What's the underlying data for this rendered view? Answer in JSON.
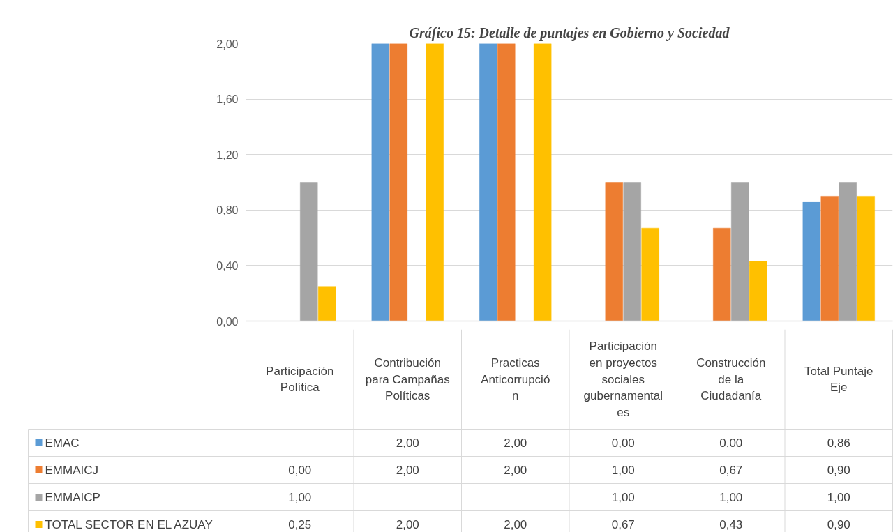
{
  "chart_data": {
    "type": "bar",
    "title": "Gráfico 15: Detalle de puntajes en Gobierno y Sociedad",
    "categories": [
      "Participación Política",
      "Contribución para Campañas Políticas",
      "Practicas Anticorrupción",
      "Participación en proyectos sociales gubernamentales",
      "Construcción de la Ciudadanía",
      "Total Puntaje Eje"
    ],
    "series": [
      {
        "name": "EMAC",
        "color": "#5b9bd5",
        "values": [
          null,
          2.0,
          2.0,
          0.0,
          0.0,
          0.86
        ],
        "value_labels": [
          null,
          "2,00",
          "2,00",
          "0,00",
          "0,00",
          "0,86"
        ]
      },
      {
        "name": "EMMAICJ",
        "color": "#ed7d31",
        "values": [
          0.0,
          2.0,
          2.0,
          1.0,
          0.67,
          0.9
        ],
        "value_labels": [
          "0,00",
          "2,00",
          "2,00",
          "1,00",
          "0,67",
          "0,90"
        ]
      },
      {
        "name": "EMMAICP",
        "color": "#a5a5a5",
        "values": [
          1.0,
          null,
          null,
          1.0,
          1.0,
          1.0
        ],
        "value_labels": [
          "1,00",
          null,
          null,
          "1,00",
          "1,00",
          "1,00"
        ]
      },
      {
        "name": "TOTAL SECTOR EN EL AZUAY",
        "color": "#ffc000",
        "values": [
          0.25,
          2.0,
          2.0,
          0.67,
          0.43,
          0.9
        ],
        "value_labels": [
          "0,25",
          "2,00",
          "2,00",
          "0,67",
          "0,43",
          "0,90"
        ]
      }
    ],
    "ylim": [
      0,
      2
    ],
    "yticks": [
      {
        "value": 0,
        "label": "0,00"
      },
      {
        "value": 0.4,
        "label": "0,40"
      },
      {
        "value": 0.8,
        "label": "0,80"
      },
      {
        "value": 1.2,
        "label": "1,20"
      },
      {
        "value": 1.6,
        "label": "1,60"
      },
      {
        "value": 2,
        "label": "2,00"
      }
    ],
    "grid": "y",
    "legend": "bottom"
  }
}
